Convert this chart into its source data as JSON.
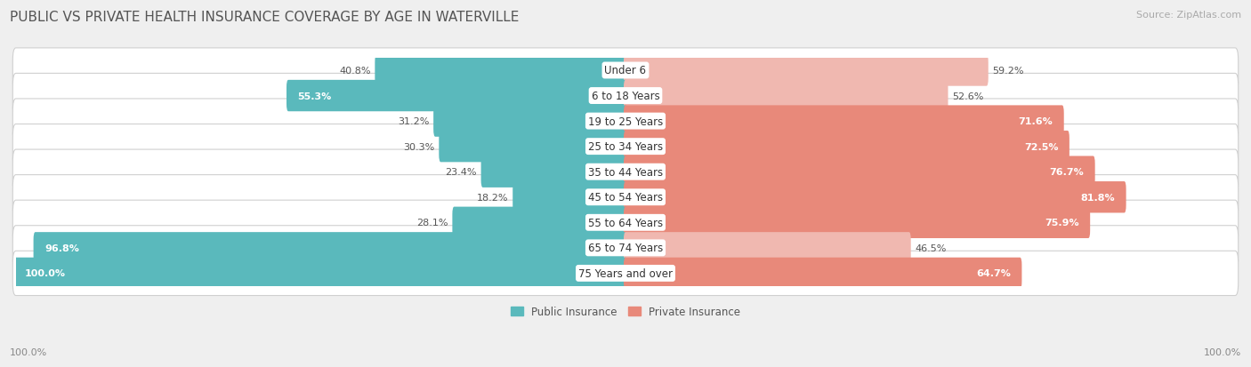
{
  "title": "PUBLIC VS PRIVATE HEALTH INSURANCE COVERAGE BY AGE IN WATERVILLE",
  "source": "Source: ZipAtlas.com",
  "categories": [
    "Under 6",
    "6 to 18 Years",
    "19 to 25 Years",
    "25 to 34 Years",
    "35 to 44 Years",
    "45 to 54 Years",
    "55 to 64 Years",
    "65 to 74 Years",
    "75 Years and over"
  ],
  "public_values": [
    40.8,
    55.3,
    31.2,
    30.3,
    23.4,
    18.2,
    28.1,
    96.8,
    100.0
  ],
  "private_values": [
    59.2,
    52.6,
    71.6,
    72.5,
    76.7,
    81.8,
    75.9,
    46.5,
    64.7
  ],
  "public_color": "#5ab9bc",
  "private_color_high": "#e8897a",
  "private_color_low": "#f0b8b0",
  "private_threshold": 60,
  "bg_color": "#efefef",
  "row_bg_color": "#ffffff",
  "row_border_color": "#d8d8d8",
  "title_fontsize": 11,
  "label_fontsize": 8.5,
  "source_fontsize": 8,
  "legend_fontsize": 8.5,
  "value_fontsize": 8,
  "axis_label_fontsize": 8
}
